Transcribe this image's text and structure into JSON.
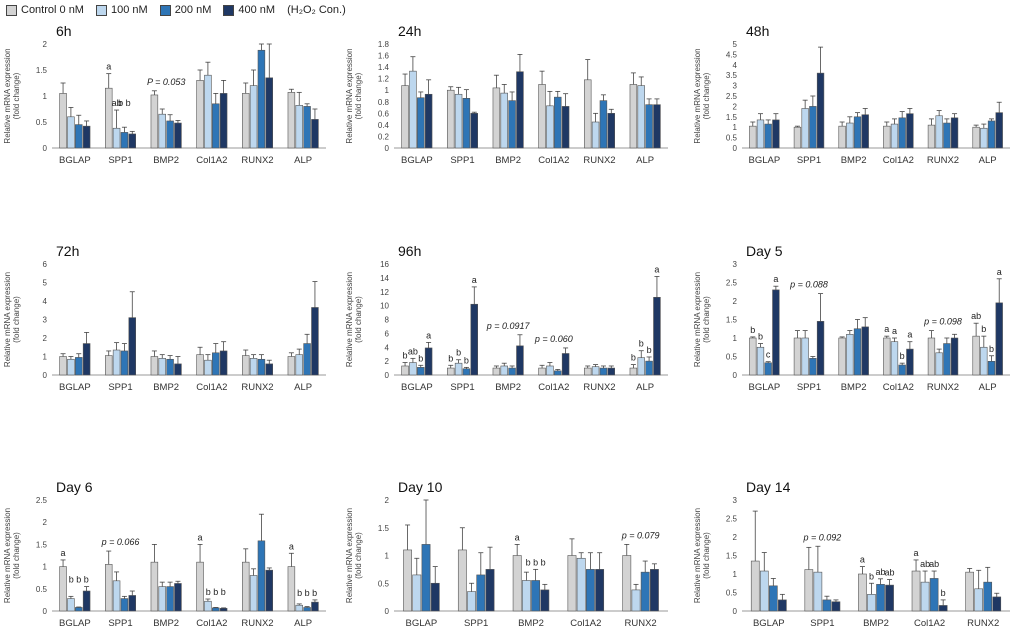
{
  "legend": {
    "items": [
      {
        "label": "Control 0 nM",
        "color": "#d3d3d3"
      },
      {
        "label": "100 nM",
        "color": "#bdd7ee"
      },
      {
        "label": "200 nM",
        "color": "#2e75b6"
      },
      {
        "label": "400 nM",
        "color": "#1f3864"
      }
    ],
    "note": "(H₂O₂ Con.)"
  },
  "ylabel_line1": "Relative mRNA expression",
  "ylabel_line2": "(fold change)",
  "chart_data": [
    {
      "type": "bar",
      "title": "6h",
      "ylim": [
        0,
        2
      ],
      "ticks": [
        0,
        0.5,
        1,
        1.5,
        2
      ],
      "categories": [
        "BGLAP",
        "SPP1",
        "BMP2",
        "Col1A2",
        "RUNX2",
        "ALP"
      ],
      "series": [
        {
          "name": "Control 0 nM",
          "values": [
            1.05,
            1.15,
            1.02,
            1.3,
            1.05,
            1.07
          ]
        },
        {
          "name": "100 nM",
          "values": [
            0.6,
            0.38,
            0.65,
            1.4,
            1.2,
            0.82
          ]
        },
        {
          "name": "200 nM",
          "values": [
            0.45,
            0.3,
            0.52,
            0.85,
            1.88,
            0.8
          ]
        },
        {
          "name": "400 nM",
          "values": [
            0.42,
            0.27,
            0.48,
            1.05,
            1.35,
            0.55
          ]
        }
      ],
      "errors": [
        [
          0.2,
          0.28,
          0.08,
          0.2,
          0.2,
          0.06
        ],
        [
          0.18,
          0.35,
          0.1,
          0.25,
          0.3,
          0.25
        ],
        [
          0.18,
          0.1,
          0.12,
          0.2,
          0.25,
          0.05
        ],
        [
          0.1,
          0.05,
          0.05,
          0.25,
          0.65,
          0.2
        ]
      ],
      "annotations": [
        {
          "cat": 1,
          "text": "a",
          "bar": 0
        },
        {
          "cat": 1,
          "text": "ab",
          "bar": 1
        },
        {
          "cat": 1,
          "text": "b b",
          "bar": 2.5
        }
      ],
      "pvalue": {
        "text": "P = 0.053",
        "cat": 2
      }
    },
    {
      "type": "bar",
      "title": "24h",
      "ylim": [
        0,
        1.8
      ],
      "ticks": [
        0,
        0.2,
        0.4,
        0.6,
        0.8,
        1,
        1.2,
        1.4,
        1.6,
        1.8
      ],
      "categories": [
        "BGLAP",
        "SPP1",
        "BMP2",
        "Col1A2",
        "RUNX2",
        "ALP"
      ],
      "series": [
        {
          "name": "Control 0 nM",
          "values": [
            1.08,
            1.0,
            1.04,
            1.1,
            1.18,
            1.1
          ]
        },
        {
          "name": "100 nM",
          "values": [
            1.33,
            0.93,
            0.95,
            0.73,
            0.45,
            1.08
          ]
        },
        {
          "name": "200 nM",
          "values": [
            0.87,
            0.86,
            0.82,
            0.88,
            0.82,
            0.75
          ]
        },
        {
          "name": "400 nM",
          "values": [
            0.93,
            0.6,
            1.32,
            0.72,
            0.6,
            0.75
          ]
        }
      ],
      "errors": [
        [
          0.2,
          0.06,
          0.22,
          0.23,
          0.35,
          0.2
        ],
        [
          0.25,
          0.12,
          0.15,
          0.25,
          0.15,
          0.15
        ],
        [
          0.1,
          0.15,
          0.15,
          0.1,
          0.1,
          0.1
        ],
        [
          0.25,
          0.02,
          0.3,
          0.22,
          0.07,
          0.1
        ]
      ],
      "annotations": [],
      "pvalue": null
    },
    {
      "type": "bar",
      "title": "48h",
      "ylim": [
        0,
        5
      ],
      "ticks": [
        0,
        0.5,
        1,
        1.5,
        2,
        2.5,
        3,
        3.5,
        4,
        4.5,
        5
      ],
      "categories": [
        "BGLAP",
        "SPP1",
        "BMP2",
        "Col1A2",
        "RUNX2",
        "ALP"
      ],
      "series": [
        {
          "name": "Control 0 nM",
          "values": [
            1.05,
            1.0,
            1.05,
            1.05,
            1.1,
            1.0
          ]
        },
        {
          "name": "100 nM",
          "values": [
            1.35,
            1.9,
            1.2,
            1.15,
            1.55,
            0.95
          ]
        },
        {
          "name": "200 nM",
          "values": [
            1.15,
            2.0,
            1.5,
            1.45,
            1.2,
            1.3
          ]
        },
        {
          "name": "400 nM",
          "values": [
            1.35,
            3.6,
            1.6,
            1.65,
            1.45,
            1.7
          ]
        }
      ],
      "errors": [
        [
          0.2,
          0.05,
          0.2,
          0.2,
          0.3,
          0.1
        ],
        [
          0.3,
          0.4,
          0.3,
          0.25,
          0.25,
          0.2
        ],
        [
          0.2,
          0.5,
          0.2,
          0.3,
          0.2,
          0.1
        ],
        [
          0.3,
          1.25,
          0.3,
          0.25,
          0.2,
          0.5
        ]
      ],
      "annotations": [],
      "pvalue": null
    },
    {
      "type": "bar",
      "title": "72h",
      "ylim": [
        0,
        6
      ],
      "ticks": [
        0,
        1,
        2,
        3,
        4,
        5,
        6
      ],
      "categories": [
        "BGLAP",
        "SPP1",
        "BMP2",
        "Col1A2",
        "RUNX2",
        "ALP"
      ],
      "series": [
        {
          "name": "Control 0 nM",
          "values": [
            1.0,
            1.05,
            1.0,
            1.1,
            1.05,
            1.0
          ]
        },
        {
          "name": "100 nM",
          "values": [
            0.85,
            1.35,
            0.9,
            0.8,
            0.9,
            1.1
          ]
        },
        {
          "name": "200 nM",
          "values": [
            0.95,
            1.3,
            0.85,
            1.2,
            0.85,
            1.7
          ]
        },
        {
          "name": "400 nM",
          "values": [
            1.7,
            3.1,
            0.6,
            1.3,
            0.6,
            3.65
          ]
        }
      ],
      "errors": [
        [
          0.15,
          0.25,
          0.3,
          0.4,
          0.3,
          0.2
        ],
        [
          0.15,
          0.4,
          0.2,
          0.3,
          0.2,
          0.3
        ],
        [
          0.2,
          0.4,
          0.2,
          0.5,
          0.25,
          0.5
        ],
        [
          0.6,
          1.4,
          0.4,
          0.5,
          0.2,
          1.4
        ]
      ],
      "annotations": [],
      "pvalue": null
    },
    {
      "type": "bar",
      "title": "96h",
      "ylim": [
        0,
        16
      ],
      "ticks": [
        0,
        2,
        4,
        6,
        8,
        10,
        12,
        14,
        16
      ],
      "categories": [
        "BGLAP",
        "SPP1",
        "BMP2",
        "Col1A2",
        "RUNX2",
        "ALP"
      ],
      "series": [
        {
          "name": "Control 0 nM",
          "values": [
            1.3,
            1.0,
            1.0,
            1.0,
            1.0,
            1.0
          ]
        },
        {
          "name": "100 nM",
          "values": [
            1.8,
            1.7,
            1.3,
            1.3,
            1.2,
            2.5
          ]
        },
        {
          "name": "200 nM",
          "values": [
            1.1,
            0.9,
            1.0,
            0.6,
            1.0,
            2.0
          ]
        },
        {
          "name": "400 nM",
          "values": [
            3.9,
            10.2,
            4.2,
            3.1,
            1.0,
            11.2
          ]
        }
      ],
      "errors": [
        [
          0.5,
          0.4,
          0.3,
          0.4,
          0.3,
          0.5
        ],
        [
          0.6,
          0.5,
          0.4,
          0.5,
          0.3,
          1.0
        ],
        [
          0.3,
          0.2,
          0.3,
          0.2,
          0.3,
          0.6
        ],
        [
          0.8,
          2.5,
          1.6,
          0.8,
          0.3,
          3.0
        ]
      ],
      "annotations": [
        {
          "cat": 0,
          "text": "b",
          "bar": 0
        },
        {
          "cat": 0,
          "text": "ab",
          "bar": 1
        },
        {
          "cat": 0,
          "text": "b",
          "bar": 2
        },
        {
          "cat": 0,
          "text": "a",
          "bar": 3
        },
        {
          "cat": 1,
          "text": "b",
          "bar": 0
        },
        {
          "cat": 1,
          "text": "b",
          "bar": 1
        },
        {
          "cat": 1,
          "text": "b",
          "bar": 2
        },
        {
          "cat": 1,
          "text": "a",
          "bar": 3
        },
        {
          "cat": 5,
          "text": "b",
          "bar": 0
        },
        {
          "cat": 5,
          "text": "b",
          "bar": 1
        },
        {
          "cat": 5,
          "text": "b",
          "bar": 2
        },
        {
          "cat": 5,
          "text": "a",
          "bar": 3
        }
      ],
      "pvalues": [
        {
          "text": "p = 0.0917",
          "cat": 2
        },
        {
          "text": "p = 0.060",
          "cat": 3
        }
      ]
    },
    {
      "type": "bar",
      "title": "Day 5",
      "ylim": [
        0,
        3
      ],
      "ticks": [
        0,
        0.5,
        1,
        1.5,
        2,
        2.5,
        3
      ],
      "categories": [
        "BGLAP",
        "SPP1",
        "BMP2",
        "Col1A2",
        "RUNX2",
        "ALP"
      ],
      "series": [
        {
          "name": "Control 0 nM",
          "values": [
            1.0,
            1.0,
            1.0,
            1.0,
            1.0,
            1.05
          ]
        },
        {
          "name": "100 nM",
          "values": [
            0.75,
            1.0,
            1.1,
            0.9,
            0.6,
            0.75
          ]
        },
        {
          "name": "200 nM",
          "values": [
            0.33,
            0.45,
            1.25,
            0.27,
            0.85,
            0.37
          ]
        },
        {
          "name": "400 nM",
          "values": [
            2.3,
            1.45,
            1.3,
            0.7,
            1.0,
            1.95
          ]
        }
      ],
      "errors": [
        [
          0.03,
          0.2,
          0.03,
          0.05,
          0.2,
          0.35
        ],
        [
          0.1,
          0.2,
          0.1,
          0.1,
          0.1,
          0.3
        ],
        [
          0.03,
          0.05,
          0.25,
          0.05,
          0.15,
          0.15
        ],
        [
          0.1,
          0.75,
          0.25,
          0.2,
          0.1,
          0.65
        ]
      ],
      "annotations": [
        {
          "cat": 0,
          "text": "b",
          "bar": 0
        },
        {
          "cat": 0,
          "text": "b",
          "bar": 1
        },
        {
          "cat": 0,
          "text": "c",
          "bar": 2
        },
        {
          "cat": 0,
          "text": "a",
          "bar": 3
        },
        {
          "cat": 3,
          "text": "a",
          "bar": 0
        },
        {
          "cat": 3,
          "text": "a",
          "bar": 1
        },
        {
          "cat": 3,
          "text": "b",
          "bar": 2
        },
        {
          "cat": 3,
          "text": "a",
          "bar": 3
        },
        {
          "cat": 5,
          "text": "ab",
          "bar": 0
        },
        {
          "cat": 5,
          "text": "b",
          "bar": 1
        },
        {
          "cat": 5,
          "text": "b",
          "bar": 2
        },
        {
          "cat": 5,
          "text": "a",
          "bar": 3
        }
      ],
      "pvalues": [
        {
          "text": "p = 0.088",
          "cat": 1
        },
        {
          "text": "p = 0.098",
          "cat": 4
        }
      ]
    },
    {
      "type": "bar",
      "title": "Day 6",
      "ylim": [
        0,
        2.5
      ],
      "ticks": [
        0,
        0.5,
        1,
        1.5,
        2,
        2.5
      ],
      "categories": [
        "BGLAP",
        "SPP1",
        "BMP2",
        "Col1A2",
        "RUNX2",
        "ALP"
      ],
      "series": [
        {
          "name": "Control 0 nM",
          "values": [
            1.0,
            1.05,
            1.1,
            1.1,
            1.1,
            1.0
          ]
        },
        {
          "name": "100 nM",
          "values": [
            0.28,
            0.68,
            0.55,
            0.22,
            0.8,
            0.13
          ]
        },
        {
          "name": "200 nM",
          "values": [
            0.08,
            0.28,
            0.55,
            0.07,
            1.58,
            0.08
          ]
        },
        {
          "name": "400 nM",
          "values": [
            0.45,
            0.35,
            0.62,
            0.06,
            0.92,
            0.2
          ]
        }
      ],
      "errors": [
        [
          0.15,
          0.3,
          0.4,
          0.4,
          0.3,
          0.3
        ],
        [
          0.05,
          0.2,
          0.1,
          0.05,
          0.15,
          0.03
        ],
        [
          0.01,
          0.05,
          0.1,
          0.01,
          0.6,
          0.02
        ],
        [
          0.1,
          0.1,
          0.05,
          0.01,
          0.05,
          0.05
        ]
      ],
      "annotations": [
        {
          "cat": 0,
          "text": "a",
          "bar": 0
        },
        {
          "cat": 0,
          "text": "b b b",
          "bar": 2
        },
        {
          "cat": 3,
          "text": "a",
          "bar": 0
        },
        {
          "cat": 3,
          "text": "b b b",
          "bar": 2
        },
        {
          "cat": 5,
          "text": "a",
          "bar": 0
        },
        {
          "cat": 5,
          "text": "b b b",
          "bar": 2
        }
      ],
      "pvalues": [
        {
          "text": "p = 0.066",
          "cat": 1
        }
      ]
    },
    {
      "type": "bar",
      "title": "Day 10",
      "ylim": [
        0,
        2
      ],
      "ticks": [
        0,
        0.5,
        1,
        1.5,
        2
      ],
      "categories": [
        "BGLAP",
        "SPP1",
        "BMP2",
        "Col1A2",
        "RUNX2"
      ],
      "series": [
        {
          "name": "Control 0 nM",
          "values": [
            1.1,
            1.1,
            1.0,
            1.0,
            1.0
          ]
        },
        {
          "name": "100 nM",
          "values": [
            0.65,
            0.35,
            0.55,
            0.95,
            0.38
          ]
        },
        {
          "name": "200 nM",
          "values": [
            1.2,
            0.65,
            0.55,
            0.75,
            0.7
          ]
        },
        {
          "name": "400 nM",
          "values": [
            0.5,
            0.75,
            0.38,
            0.75,
            0.75
          ]
        }
      ],
      "errors": [
        [
          0.45,
          0.4,
          0.2,
          0.3,
          0.2
        ],
        [
          0.3,
          0.15,
          0.15,
          0.1,
          0.1
        ],
        [
          0.9,
          0.4,
          0.2,
          0.3,
          0.2
        ],
        [
          0.3,
          0.4,
          0.1,
          0.3,
          0.1
        ]
      ],
      "annotations": [
        {
          "cat": 2,
          "text": "a",
          "bar": 0
        },
        {
          "cat": 2,
          "text": "b b b",
          "bar": 2
        }
      ],
      "pvalues": [
        {
          "text": "p = 0.079",
          "cat": 4
        }
      ]
    },
    {
      "type": "bar",
      "title": "Day 14",
      "ylim": [
        0,
        3
      ],
      "ticks": [
        0,
        0.5,
        1,
        1.5,
        2,
        2.5,
        3
      ],
      "categories": [
        "BGLAP",
        "SPP1",
        "BMP2",
        "Col1A2",
        "RUNX2"
      ],
      "series": [
        {
          "name": "Control 0 nM",
          "values": [
            1.35,
            1.12,
            1.0,
            1.08,
            1.05
          ]
        },
        {
          "name": "100 nM",
          "values": [
            1.08,
            1.05,
            0.45,
            0.78,
            0.6
          ]
        },
        {
          "name": "200 nM",
          "values": [
            0.68,
            0.3,
            0.72,
            0.88,
            0.78
          ]
        },
        {
          "name": "400 nM",
          "values": [
            0.3,
            0.25,
            0.7,
            0.15,
            0.38
          ]
        }
      ],
      "errors": [
        [
          1.35,
          0.6,
          0.2,
          0.3,
          0.1
        ],
        [
          0.5,
          0.7,
          0.3,
          0.3,
          0.5
        ],
        [
          0.2,
          0.1,
          0.15,
          0.2,
          0.4
        ],
        [
          0.15,
          0.05,
          0.15,
          0.15,
          0.1
        ]
      ],
      "annotations": [
        {
          "cat": 2,
          "text": "a",
          "bar": 0
        },
        {
          "cat": 2,
          "text": "b",
          "bar": 1
        },
        {
          "cat": 2,
          "text": "ab",
          "bar": 2
        },
        {
          "cat": 2,
          "text": "ab",
          "bar": 3
        },
        {
          "cat": 3,
          "text": "a",
          "bar": 0
        },
        {
          "cat": 3,
          "text": "ab",
          "bar": 1
        },
        {
          "cat": 3,
          "text": "ab",
          "bar": 2
        },
        {
          "cat": 3,
          "text": "b",
          "bar": 3
        }
      ],
      "pvalues": [
        {
          "text": "p = 0.092",
          "cat": 1
        }
      ]
    }
  ]
}
